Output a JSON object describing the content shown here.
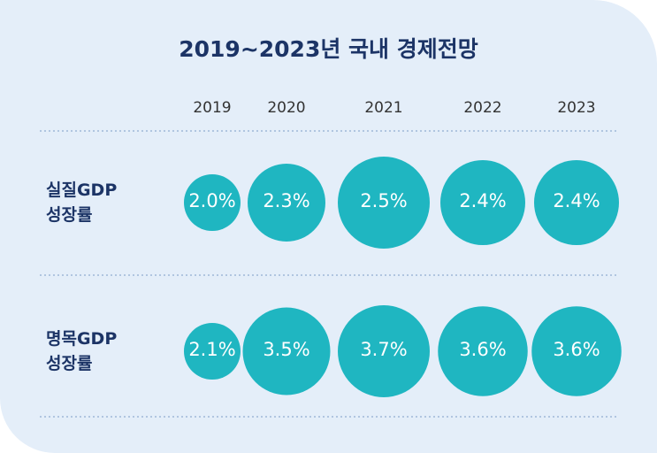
{
  "chart_data": {
    "type": "bubble-grid",
    "title": "2019~2023년 국내 경제전망",
    "categories": [
      "2019",
      "2020",
      "2021",
      "2022",
      "2023"
    ],
    "color": "#1fb6c1",
    "series": [
      {
        "name": "실질GDP 성장률",
        "values": [
          2.0,
          2.3,
          2.5,
          2.4,
          2.4
        ],
        "value_labels": [
          "2.0%",
          "2.3%",
          "2.5%",
          "2.4%",
          "2.4%"
        ]
      },
      {
        "name": "명목GDP 성장률",
        "values": [
          2.1,
          3.5,
          3.7,
          3.6,
          3.6
        ],
        "value_labels": [
          "2.1%",
          "3.5%",
          "3.7%",
          "3.6%",
          "3.6%"
        ]
      }
    ]
  }
}
